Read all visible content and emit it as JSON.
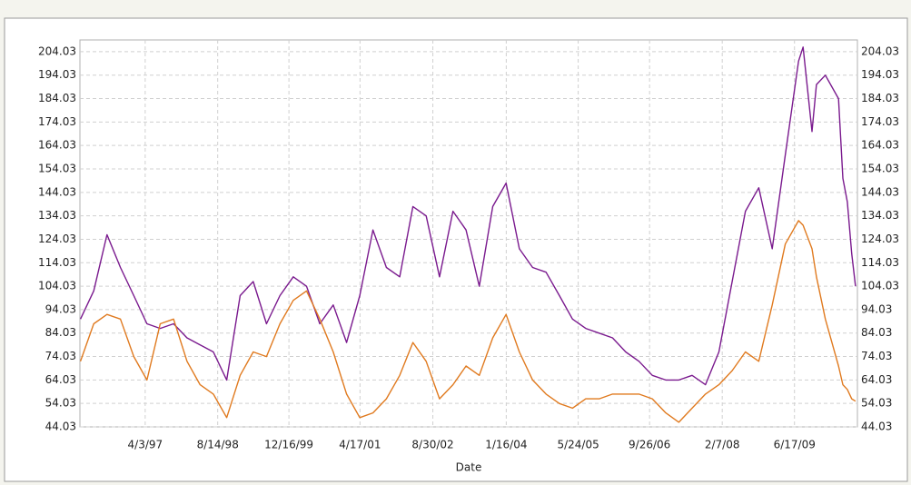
{
  "chart_data": {
    "type": "line",
    "xlabel": "Date",
    "x": [
      "1/15/96",
      "4/15/96",
      "7/15/96",
      "10/15/96",
      "1/15/97",
      "4/15/97",
      "7/15/97",
      "10/15/97",
      "1/15/98",
      "4/15/98",
      "7/15/98",
      "10/15/98",
      "1/15/99",
      "4/15/99",
      "7/15/99",
      "10/15/99",
      "1/15/00",
      "4/15/00",
      "7/15/00",
      "10/15/00",
      "1/15/01",
      "4/15/01",
      "7/15/01",
      "10/15/01",
      "1/15/02",
      "4/15/02",
      "7/15/02",
      "10/15/02",
      "1/15/03",
      "4/15/03",
      "7/15/03",
      "10/15/03",
      "1/15/04",
      "4/15/04",
      "7/15/04",
      "10/15/04",
      "1/15/05",
      "4/15/05",
      "7/15/05",
      "10/15/05",
      "1/15/06",
      "4/15/06",
      "7/15/06",
      "10/15/06",
      "1/15/07",
      "4/15/07",
      "7/15/07",
      "10/15/07",
      "1/15/08",
      "4/15/08",
      "7/15/08",
      "10/15/08",
      "1/15/09",
      "4/15/09",
      "7/15/09",
      "8/15/09",
      "10/15/09",
      "11/15/09",
      "1/15/10",
      "4/15/10",
      "5/15/10",
      "6/15/10",
      "7/15/10",
      "8/10/10"
    ],
    "series": [
      {
        "color": "#7a1a8e",
        "values": [
          90,
          102,
          126,
          112,
          100,
          88,
          86,
          88,
          82,
          79,
          76,
          64,
          100,
          106,
          88,
          100,
          108,
          104,
          88,
          96,
          80,
          100,
          128,
          112,
          108,
          138,
          134,
          108,
          136,
          128,
          104,
          138,
          148,
          120,
          112,
          110,
          100,
          90,
          86,
          84,
          82,
          76,
          72,
          66,
          64,
          64,
          66,
          62,
          76,
          106,
          136,
          146,
          120,
          160,
          200,
          206,
          170,
          190,
          194,
          184,
          150,
          140,
          118,
          104
        ]
      },
      {
        "color": "#e07a1f",
        "values": [
          72,
          88,
          92,
          90,
          74,
          64,
          88,
          90,
          72,
          62,
          58,
          48,
          66,
          76,
          74,
          88,
          98,
          102,
          90,
          76,
          58,
          48,
          50,
          56,
          66,
          80,
          72,
          56,
          62,
          70,
          66,
          82,
          92,
          76,
          64,
          58,
          54,
          52,
          56,
          56,
          58,
          58,
          58,
          56,
          50,
          46,
          52,
          58,
          62,
          68,
          76,
          72,
          96,
          122,
          132,
          130,
          120,
          108,
          90,
          70,
          62,
          60,
          56,
          55
        ]
      }
    ],
    "xlim": [
      "1/11/96",
      "8/23/10"
    ],
    "xticks": [
      "4/3/97",
      "8/14/98",
      "12/16/99",
      "4/17/01",
      "8/30/02",
      "1/16/04",
      "5/24/05",
      "9/26/06",
      "2/7/08",
      "6/17/09"
    ],
    "ylim": [
      44.03,
      209.03
    ],
    "yticks": [
      44.03,
      54.03,
      64.03,
      74.03,
      84.03,
      94.03,
      104.03,
      114.03,
      124.03,
      134.03,
      144.03,
      154.03,
      164.03,
      174.03,
      184.03,
      194.03,
      204.03
    ],
    "grid": true
  }
}
